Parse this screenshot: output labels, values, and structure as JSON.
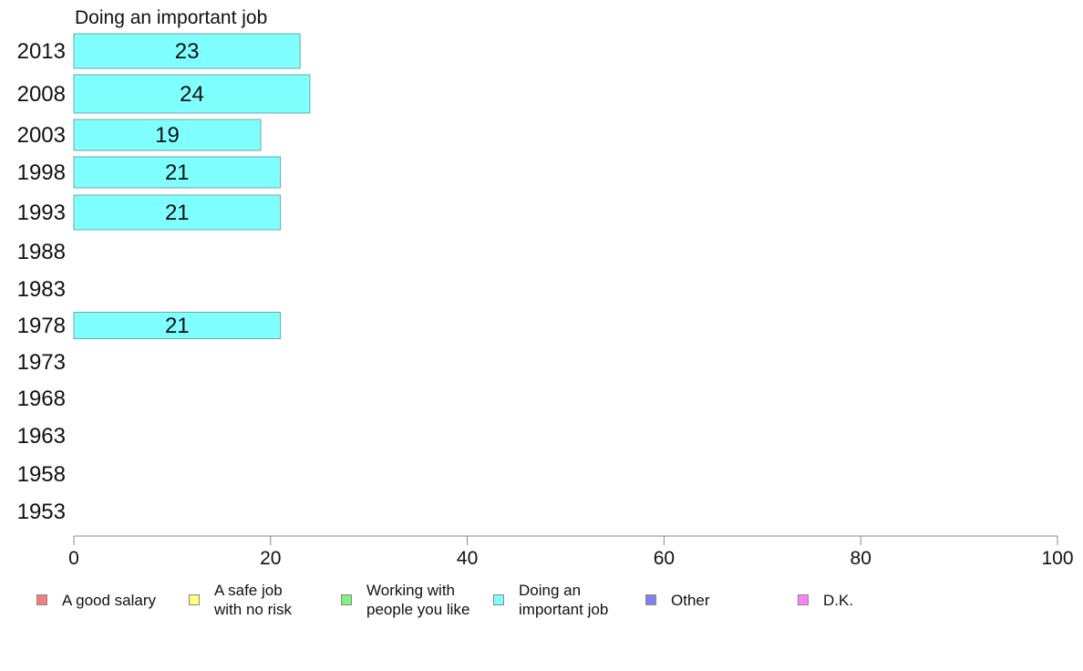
{
  "chart_data": {
    "type": "bar",
    "orientation": "horizontal",
    "title": "Doing an important job",
    "categories": [
      "2013",
      "2008",
      "2003",
      "1998",
      "1993",
      "1988",
      "1983",
      "1978",
      "1973",
      "1968",
      "1963",
      "1958",
      "1953"
    ],
    "series": [
      {
        "name": "Doing an important job",
        "color": "#80ffff",
        "values": [
          23,
          24,
          19,
          21,
          21,
          null,
          null,
          21,
          null,
          null,
          null,
          null,
          null
        ]
      }
    ],
    "xlim": [
      0,
      100
    ],
    "xticks": [
      0,
      20,
      40,
      60,
      80,
      100
    ],
    "xlabel": "",
    "ylabel": "",
    "grid": false,
    "legend_position": "bottom",
    "legend": [
      {
        "label": "A good salary",
        "color": "#f08080"
      },
      {
        "label": "A safe job\nwith no risk",
        "color": "#ffff80"
      },
      {
        "label": "Working with\npeople you like",
        "color": "#80f080"
      },
      {
        "label": "Doing an\nimportant job",
        "color": "#80ffff"
      },
      {
        "label": "Other",
        "color": "#8080f0"
      },
      {
        "label": "D.K.",
        "color": "#ff80ff"
      }
    ]
  }
}
